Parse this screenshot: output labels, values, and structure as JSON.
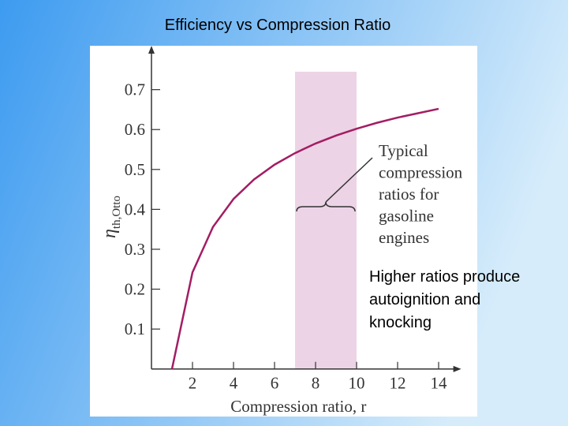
{
  "slide_title": "Efficiency vs Compression Ratio",
  "note": [
    "Higher ratios produce",
    "autoignition  and",
    "knocking"
  ],
  "chart_data": {
    "type": "line",
    "x_label": "Compression ratio, r",
    "y_label": {
      "symbol": "η",
      "subscript": "th,Otto"
    },
    "x": [
      1,
      2,
      3,
      4,
      5,
      6,
      7,
      8,
      9,
      10,
      11,
      12,
      13,
      14
    ],
    "series": [
      {
        "color": "#a31d63",
        "values": [
          0,
          0.242,
          0.356,
          0.426,
          0.475,
          0.512,
          0.541,
          0.565,
          0.585,
          0.602,
          0.617,
          0.63,
          0.641,
          0.652
        ]
      }
    ],
    "xlim": [
      0,
      15.1
    ],
    "ylim": [
      0,
      0.81
    ],
    "xticks": [
      2,
      4,
      6,
      8,
      10,
      12,
      14
    ],
    "yticks": [
      0.1,
      0.2,
      0.3,
      0.4,
      0.5,
      0.6,
      0.7
    ],
    "shaded_range": {
      "x": [
        7,
        10
      ],
      "top": 0.745,
      "color": "#ecd3e6",
      "annotation": [
        "Typical",
        "compression",
        "ratios for",
        "gasoline",
        "engines"
      ]
    }
  }
}
